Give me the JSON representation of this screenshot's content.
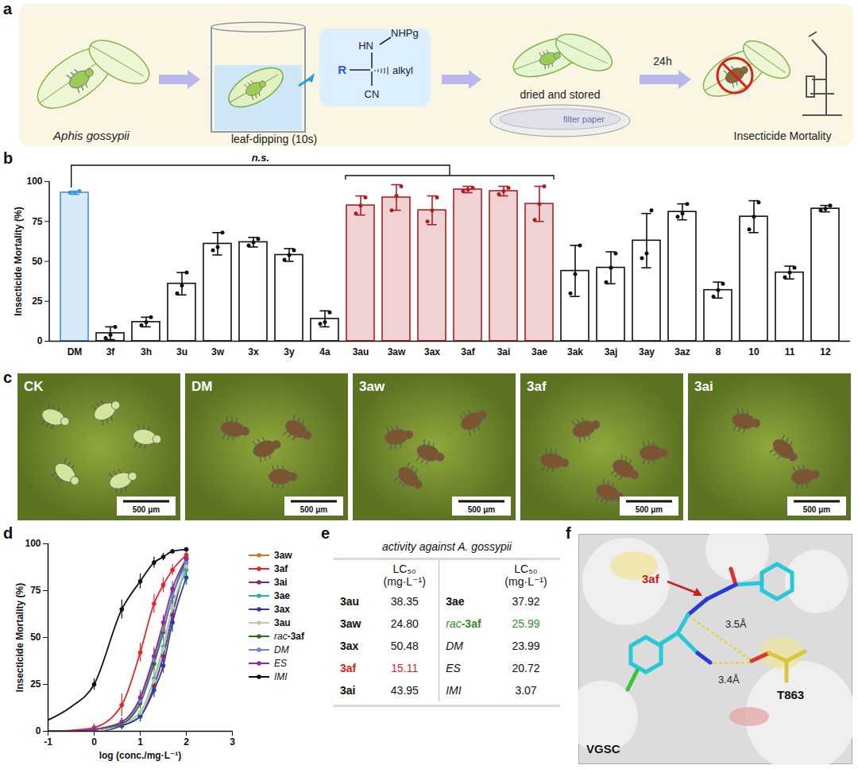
{
  "letters": [
    "a",
    "b",
    "c",
    "d",
    "e",
    "f"
  ],
  "schematic_a": {
    "steps": [
      "Aphis gossypii",
      "leaf-dipping (10s)",
      "dried and stored",
      "Insecticide Mortality"
    ],
    "time": "24h",
    "dish": "filter paper",
    "molecule": {
      "amine": "HN",
      "protecting": "NHPg",
      "r": "R",
      "alkyl": "alkyl",
      "nitrile": "CN"
    }
  },
  "chart_data": [
    {
      "type": "bar",
      "categories": [
        "DM",
        "3f",
        "3h",
        "3u",
        "3w",
        "3x",
        "3y",
        "4a",
        "3au",
        "3aw",
        "3ax",
        "3af",
        "3ai",
        "3ae",
        "3ak",
        "3aj",
        "3ay",
        "3az",
        "8",
        "10",
        "11",
        "12"
      ],
      "values": [
        93,
        5,
        12,
        36,
        61,
        62,
        54,
        14,
        85,
        90,
        82,
        95,
        94,
        86,
        44,
        46,
        63,
        81,
        32,
        78,
        43,
        83
      ],
      "errors": [
        1,
        4,
        3,
        7,
        7,
        3,
        4,
        5,
        6,
        8,
        9,
        2,
        3,
        11,
        16,
        10,
        17,
        5,
        5,
        10,
        4,
        2
      ],
      "replicates": [
        [
          93,
          93,
          94
        ],
        [
          2,
          4,
          9
        ],
        [
          10,
          12,
          15
        ],
        [
          30,
          35,
          43
        ],
        [
          57,
          59,
          68
        ],
        [
          60,
          62,
          64
        ],
        [
          51,
          54,
          57
        ],
        [
          11,
          12,
          18
        ],
        [
          80,
          85,
          90
        ],
        [
          82,
          91,
          97
        ],
        [
          75,
          82,
          90
        ],
        [
          94,
          95,
          96
        ],
        [
          92,
          94,
          96
        ],
        [
          76,
          86,
          97
        ],
        [
          30,
          42,
          60
        ],
        [
          37,
          46,
          55
        ],
        [
          52,
          55,
          82
        ],
        [
          78,
          80,
          86
        ],
        [
          28,
          32,
          36
        ],
        [
          70,
          78,
          87
        ],
        [
          40,
          43,
          46
        ],
        [
          82,
          83,
          85
        ]
      ],
      "colors": [
        "#3d95dd",
        "#111111",
        "#111111",
        "#111111",
        "#111111",
        "#111111",
        "#111111",
        "#111111",
        "#b01e23",
        "#b01e23",
        "#b01e23",
        "#b01e23",
        "#b01e23",
        "#b01e23",
        "#111111",
        "#111111",
        "#111111",
        "#111111",
        "#111111",
        "#111111",
        "#111111",
        "#111111"
      ],
      "y_label": "Insecticide Mortality (%)",
      "ylim": [
        0,
        100
      ],
      "yticks": [
        0,
        25,
        50,
        75,
        100
      ],
      "annotations": [
        {
          "text": "n.s.",
          "from": "DM",
          "to": [
            "3au",
            "3ae"
          ]
        }
      ]
    },
    {
      "type": "line",
      "x": [
        -1,
        -0.5,
        0,
        0.6,
        1,
        1.3,
        1.5,
        1.7,
        2
      ],
      "series": [
        {
          "name": "3aw",
          "color": "#d2762a",
          "values": [
            0,
            0,
            1,
            5,
            18,
            40,
            55,
            72,
            92
          ],
          "errors": [
            null,
            null,
            1,
            2,
            4,
            5,
            5,
            5,
            3
          ]
        },
        {
          "name": "3af",
          "color": "#e8262a",
          "values": [
            0,
            0.5,
            2,
            14,
            42,
            68,
            78,
            86,
            94
          ],
          "errors": [
            null,
            null,
            2,
            6,
            5,
            5,
            4,
            3,
            2
          ]
        },
        {
          "name": "3ai",
          "color": "#7d2a7e",
          "values": [
            0,
            0,
            0,
            3,
            8,
            24,
            40,
            62,
            90
          ],
          "errors": [
            null,
            null,
            1,
            2,
            3,
            4,
            5,
            5,
            4
          ]
        },
        {
          "name": "3ae",
          "color": "#2bb3a0",
          "values": [
            0,
            0,
            0,
            4,
            10,
            28,
            45,
            66,
            86
          ],
          "errors": [
            null,
            null,
            1,
            2,
            3,
            4,
            4,
            5,
            4
          ]
        },
        {
          "name": "3ax",
          "color": "#2b3f9e",
          "values": [
            0,
            0,
            0,
            3,
            8,
            22,
            35,
            58,
            82
          ],
          "errors": [
            null,
            null,
            1,
            2,
            3,
            4,
            4,
            5,
            4
          ]
        },
        {
          "name": "3au",
          "color": "#bccaa3",
          "values": [
            0,
            0,
            0,
            4,
            10,
            27,
            44,
            66,
            88
          ],
          "errors": [
            null,
            null,
            1,
            2,
            3,
            4,
            4,
            4,
            3
          ]
        },
        {
          "name": "rac-3af",
          "color": "#2e6b1e",
          "values": [
            0,
            0,
            1,
            4,
            15,
            36,
            53,
            72,
            92
          ],
          "errors": [
            null,
            null,
            1,
            2,
            3,
            4,
            4,
            4,
            3
          ]
        },
        {
          "name": "DM",
          "color": "#7080e0",
          "values": [
            0,
            0,
            1,
            5,
            16,
            38,
            54,
            72,
            90
          ],
          "errors": [
            null,
            null,
            1,
            2,
            3,
            4,
            4,
            4,
            3
          ]
        },
        {
          "name": "ES",
          "color": "#8b2fa0",
          "values": [
            0,
            0,
            1,
            5,
            18,
            40,
            58,
            76,
            92
          ],
          "errors": [
            null,
            null,
            1,
            2,
            3,
            4,
            4,
            4,
            3
          ]
        },
        {
          "name": "IMI",
          "color": "#111111",
          "values": [
            6,
            13,
            25,
            65,
            80,
            90,
            93,
            96,
            97
          ],
          "errors": [
            null,
            null,
            3,
            5,
            4,
            3,
            2,
            1,
            1
          ]
        }
      ],
      "x_label": "log (conc./mg·L⁻¹)",
      "y_label": "Insecticide Mortality (%)",
      "xlim": [
        -1,
        3
      ],
      "xticks": [
        -1,
        0,
        1,
        2,
        3
      ],
      "ylim": [
        0,
        100
      ],
      "yticks": [
        0,
        25,
        50,
        75,
        100
      ],
      "marker": "circle",
      "legend": "right"
    }
  ],
  "photos_c": {
    "labels": [
      "CK",
      "DM",
      "3aw",
      "3af",
      "3ai"
    ],
    "scale_bar": "500 μm"
  },
  "table_e": {
    "title": "activity against A. gossypii",
    "header": "LC₅₀ (mg·L⁻¹)",
    "columns": [
      [
        {
          "name": "3au",
          "value": "38.35"
        },
        {
          "name": "3aw",
          "value": "24.80"
        },
        {
          "name": "3ax",
          "value": "50.48"
        },
        {
          "name": "3af",
          "value": "15.11",
          "color": "#e0211f"
        },
        {
          "name": "3ai",
          "value": "43.95"
        }
      ],
      [
        {
          "name": "3ae",
          "value": "37.92"
        },
        {
          "name": "rac-3af",
          "value": "25.99",
          "color": "#3a8a2f"
        },
        {
          "name": "DM",
          "value": "23.99"
        },
        {
          "name": "ES",
          "value": "20.72"
        },
        {
          "name": "IMI",
          "value": "3.07"
        }
      ]
    ]
  },
  "docking_f": {
    "ligand": "3af",
    "distances": [
      "3.5Å",
      "3.4Å"
    ],
    "residue": "T863",
    "protein": "VGSC"
  }
}
